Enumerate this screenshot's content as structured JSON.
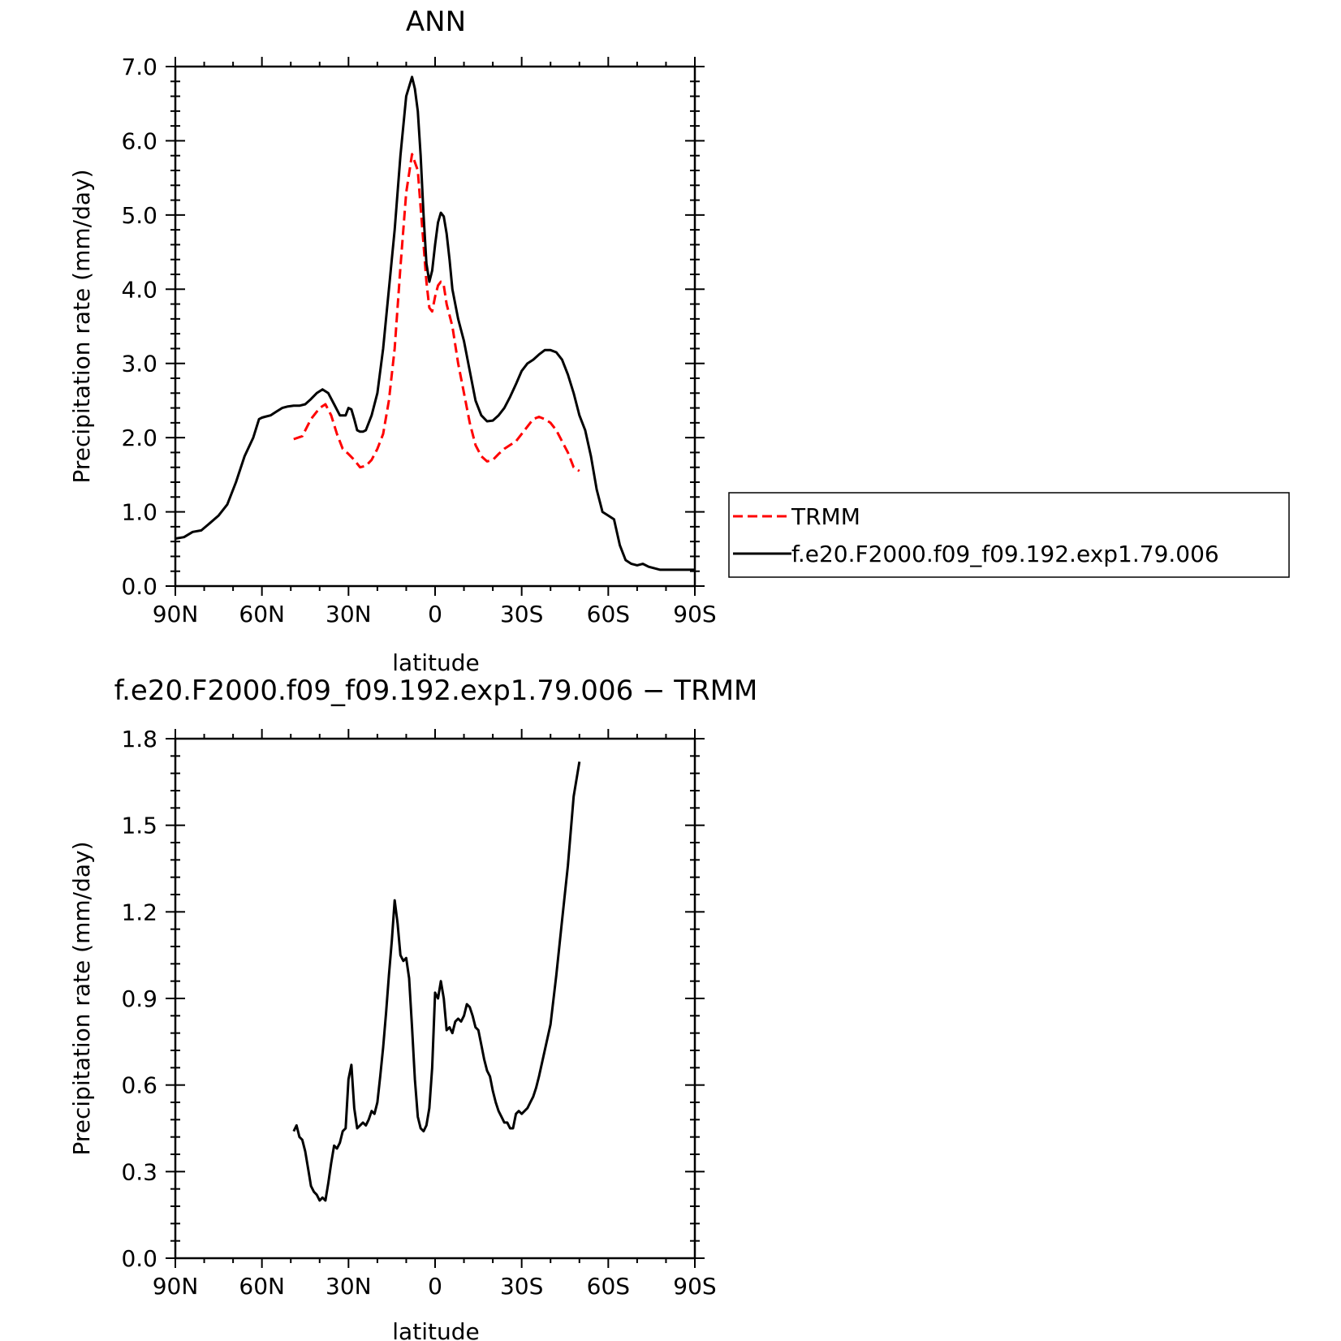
{
  "chart_data": [
    {
      "type": "line",
      "title": "ANN",
      "xlabel": "latitude",
      "ylabel": "Precipitation rate (mm/day)",
      "xlim": [
        -90,
        90
      ],
      "ylim": [
        0,
        7
      ],
      "x_ticks": [
        "90N",
        "60N",
        "30N",
        "0",
        "30S",
        "60S",
        "90S"
      ],
      "y_ticks": [
        "0.0",
        "1.0",
        "2.0",
        "3.0",
        "4.0",
        "5.0",
        "6.0",
        "7.0"
      ],
      "legend": "right",
      "series": [
        {
          "name": "TRMM",
          "color": "#ff0000",
          "dash": "dashed",
          "x": [
            -49,
            -46,
            -43,
            -40,
            -38,
            -36,
            -34,
            -32,
            -30,
            -28,
            -26,
            -24,
            -22,
            -20,
            -18,
            -16,
            -14,
            -12,
            -10,
            -8,
            -6,
            -5,
            -4,
            -3,
            -2,
            -1,
            0,
            1,
            2,
            3,
            4,
            6,
            8,
            10,
            12,
            14,
            16,
            18,
            20,
            22,
            24,
            26,
            28,
            30,
            32,
            34,
            36,
            38,
            40,
            42,
            44,
            46,
            48,
            50
          ],
          "y": [
            1.98,
            2.02,
            2.25,
            2.4,
            2.45,
            2.3,
            2.05,
            1.85,
            1.78,
            1.7,
            1.6,
            1.62,
            1.7,
            1.85,
            2.05,
            2.5,
            3.2,
            4.3,
            5.3,
            5.82,
            5.6,
            5.1,
            4.6,
            4.1,
            3.75,
            3.7,
            3.9,
            4.05,
            4.1,
            4.05,
            3.8,
            3.5,
            3.0,
            2.6,
            2.2,
            1.9,
            1.75,
            1.68,
            1.7,
            1.78,
            1.85,
            1.9,
            1.95,
            2.05,
            2.15,
            2.25,
            2.28,
            2.25,
            2.2,
            2.1,
            1.95,
            1.8,
            1.6,
            1.55
          ]
        },
        {
          "name": "f.e20.F2000.f09_f09.192.exp1.79.006",
          "color": "#000000",
          "dash": "solid",
          "x": [
            -90,
            -87,
            -84,
            -81,
            -78,
            -75,
            -72,
            -69,
            -66,
            -63,
            -61,
            -60,
            -59,
            -57,
            -55,
            -53,
            -51,
            -49,
            -47,
            -45,
            -43,
            -41,
            -39,
            -37,
            -35,
            -33,
            -31,
            -30,
            -29,
            -28,
            -27,
            -26,
            -25,
            -24,
            -22,
            -20,
            -18,
            -16,
            -14,
            -12,
            -10,
            -8,
            -7,
            -6,
            -5,
            -4,
            -3,
            -2,
            -1,
            0,
            1,
            2,
            3,
            4,
            5,
            6,
            8,
            10,
            12,
            14,
            16,
            18,
            20,
            22,
            24,
            26,
            28,
            30,
            32,
            34,
            36,
            38,
            40,
            42,
            44,
            46,
            48,
            50,
            52,
            54,
            56,
            58,
            60,
            62,
            64,
            66,
            68,
            70,
            72,
            74,
            76,
            78,
            80,
            82,
            84,
            86,
            88,
            90
          ],
          "y": [
            0.64,
            0.66,
            0.73,
            0.75,
            0.85,
            0.95,
            1.1,
            1.4,
            1.75,
            2.0,
            2.25,
            2.27,
            2.28,
            2.3,
            2.35,
            2.4,
            2.42,
            2.43,
            2.43,
            2.45,
            2.52,
            2.6,
            2.65,
            2.6,
            2.45,
            2.3,
            2.3,
            2.4,
            2.38,
            2.25,
            2.1,
            2.08,
            2.08,
            2.1,
            2.3,
            2.6,
            3.2,
            4.0,
            4.8,
            5.8,
            6.6,
            6.86,
            6.7,
            6.4,
            5.8,
            5.0,
            4.35,
            4.1,
            4.25,
            4.6,
            4.9,
            5.03,
            4.98,
            4.75,
            4.4,
            4.0,
            3.6,
            3.3,
            2.9,
            2.5,
            2.3,
            2.22,
            2.23,
            2.3,
            2.4,
            2.55,
            2.72,
            2.9,
            3.0,
            3.05,
            3.12,
            3.18,
            3.18,
            3.15,
            3.05,
            2.85,
            2.6,
            2.3,
            2.1,
            1.75,
            1.3,
            1.0,
            0.95,
            0.9,
            0.55,
            0.35,
            0.3,
            0.28,
            0.3,
            0.26,
            0.24,
            0.22,
            0.22,
            0.22,
            0.22,
            0.22,
            0.22,
            0.22
          ]
        }
      ]
    },
    {
      "type": "line",
      "title": "f.e20.F2000.f09_f09.192.exp1.79.006 − TRMM",
      "xlabel": "latitude",
      "ylabel": "Precipitation rate (mm/day)",
      "xlim": [
        -90,
        90
      ],
      "ylim": [
        0,
        1.8
      ],
      "x_ticks": [
        "90N",
        "60N",
        "30N",
        "0",
        "30S",
        "60S",
        "90S"
      ],
      "y_ticks": [
        "0.0",
        "0.3",
        "0.6",
        "0.9",
        "1.2",
        "1.5",
        "1.8"
      ],
      "series": [
        {
          "color": "#000000",
          "x": [
            -49,
            -48,
            -47,
            -46,
            -45,
            -44,
            -43,
            -42,
            -41,
            -40,
            -39,
            -38,
            -37,
            -36,
            -35,
            -34,
            -33,
            -32,
            -31,
            -30,
            -29,
            -28,
            -27,
            -26,
            -25,
            -24,
            -23,
            -22,
            -21,
            -20,
            -19,
            -18,
            -17,
            -16,
            -15,
            -14,
            -13,
            -12,
            -11,
            -10,
            -9,
            -8,
            -7,
            -6,
            -5,
            -4,
            -3,
            -2,
            -1,
            0,
            1,
            2,
            3,
            4,
            5,
            6,
            7,
            8,
            9,
            10,
            11,
            12,
            13,
            14,
            15,
            16,
            17,
            18,
            19,
            20,
            21,
            22,
            23,
            24,
            25,
            26,
            27,
            28,
            29,
            30,
            31,
            32,
            33,
            34,
            35,
            36,
            38,
            40,
            42,
            44,
            46,
            48,
            50
          ],
          "y": [
            0.44,
            0.46,
            0.42,
            0.41,
            0.37,
            0.31,
            0.25,
            0.23,
            0.22,
            0.2,
            0.21,
            0.2,
            0.26,
            0.33,
            0.39,
            0.38,
            0.4,
            0.44,
            0.45,
            0.62,
            0.67,
            0.52,
            0.45,
            0.46,
            0.47,
            0.46,
            0.48,
            0.51,
            0.5,
            0.54,
            0.63,
            0.73,
            0.85,
            0.98,
            1.1,
            1.24,
            1.16,
            1.05,
            1.03,
            1.04,
            0.97,
            0.8,
            0.62,
            0.49,
            0.45,
            0.44,
            0.46,
            0.52,
            0.66,
            0.92,
            0.9,
            0.96,
            0.9,
            0.79,
            0.8,
            0.78,
            0.82,
            0.83,
            0.82,
            0.84,
            0.88,
            0.87,
            0.84,
            0.8,
            0.79,
            0.74,
            0.69,
            0.65,
            0.63,
            0.58,
            0.54,
            0.51,
            0.49,
            0.47,
            0.47,
            0.45,
            0.45,
            0.5,
            0.51,
            0.5,
            0.51,
            0.52,
            0.54,
            0.56,
            0.59,
            0.63,
            0.72,
            0.81,
            0.98,
            1.17,
            1.36,
            1.6,
            1.72
          ]
        }
      ]
    }
  ]
}
